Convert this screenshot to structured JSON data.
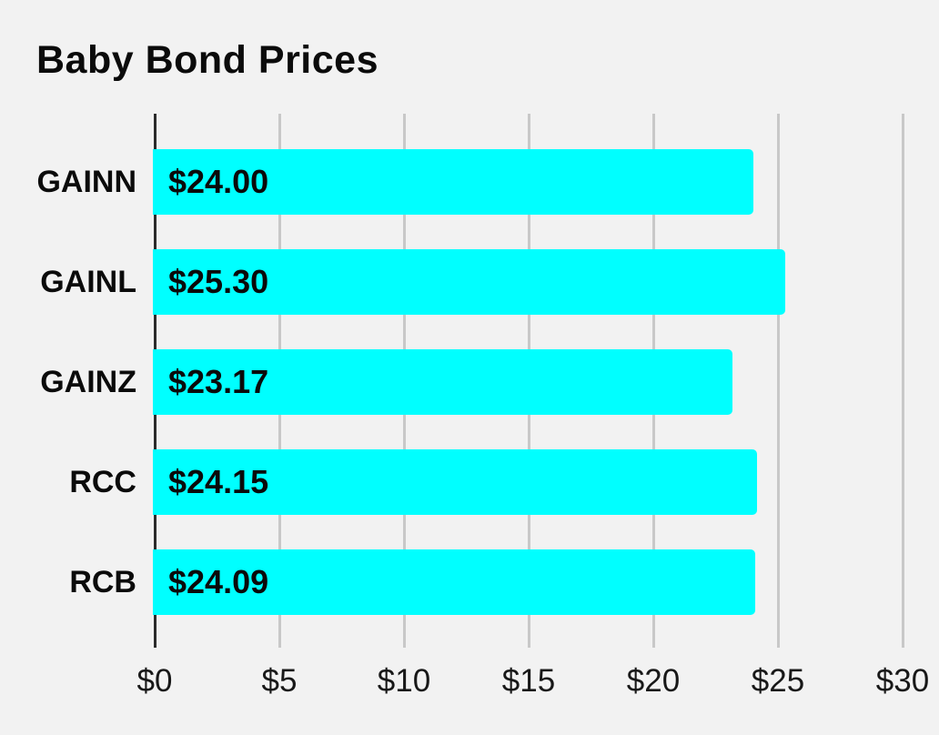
{
  "page": {
    "background_color": "#f2f2f2"
  },
  "chart_data": {
    "type": "bar",
    "orientation": "horizontal",
    "title": "Baby Bond Prices",
    "categories": [
      "GAINN",
      "GAINL",
      "GAINZ",
      "RCC",
      "RCB"
    ],
    "values": [
      24.0,
      25.3,
      23.17,
      24.15,
      24.09
    ],
    "value_labels": [
      "$24.00",
      "$25.30",
      "$23.17",
      "$24.15",
      "$24.09"
    ],
    "x_ticks": [
      0,
      5,
      10,
      15,
      20,
      25,
      30
    ],
    "x_tick_labels": [
      "$0",
      "$5",
      "$10",
      "$15",
      "$20",
      "$25",
      "$30"
    ],
    "xlim": [
      0,
      30
    ],
    "xlabel": "",
    "ylabel": "",
    "legend": "none",
    "grid": "vertical-only",
    "bar_color": "#00ffff",
    "grid_color": "#c8c8c8",
    "axis_color": "#2b2b2b",
    "value_label_position": "inside-start"
  }
}
